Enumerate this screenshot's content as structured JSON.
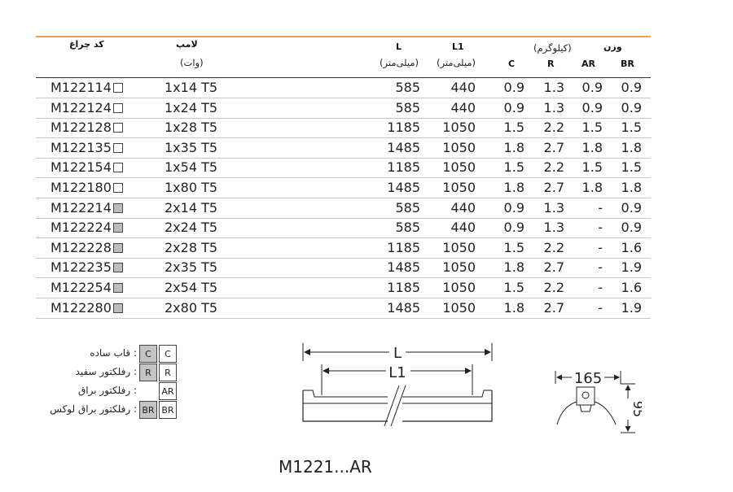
{
  "table": {
    "headers": {
      "code": "کد چراغ",
      "lamp": "لامپ",
      "lamp_unit": "(وات)",
      "L": "L",
      "L_unit": "(میلی‌متر)",
      "L1": "L1",
      "L1_unit": "(میلی‌متر)",
      "weight": "وزن",
      "weight_unit": "(کیلوگرم)",
      "C": "C",
      "R": "R",
      "AR": "AR",
      "BR": "BR"
    },
    "rows": [
      {
        "code": "M122114",
        "box": "white",
        "lamp": "1x14 T5",
        "L": "585",
        "L1": "440",
        "C": "0.9",
        "R": "1.3",
        "AR": "0.9",
        "BR": "0.9"
      },
      {
        "code": "M122124",
        "box": "white",
        "lamp": "1x24 T5",
        "L": "585",
        "L1": "440",
        "C": "0.9",
        "R": "1.3",
        "AR": "0.9",
        "BR": "0.9"
      },
      {
        "code": "M122128",
        "box": "white",
        "lamp": "1x28 T5",
        "L": "1185",
        "L1": "1050",
        "C": "1.5",
        "R": "2.2",
        "AR": "1.5",
        "BR": "1.5"
      },
      {
        "code": "M122135",
        "box": "white",
        "lamp": "1x35 T5",
        "L": "1485",
        "L1": "1050",
        "C": "1.8",
        "R": "2.7",
        "AR": "1.8",
        "BR": "1.8"
      },
      {
        "code": "M122154",
        "box": "white",
        "lamp": "1x54 T5",
        "L": "1185",
        "L1": "1050",
        "C": "1.5",
        "R": "2.2",
        "AR": "1.5",
        "BR": "1.5"
      },
      {
        "code": "M122180",
        "box": "white",
        "lamp": "1x80 T5",
        "L": "1485",
        "L1": "1050",
        "C": "1.8",
        "R": "2.7",
        "AR": "1.8",
        "BR": "1.8"
      },
      {
        "code": "M122214",
        "box": "grey",
        "lamp": "2x14 T5",
        "L": "585",
        "L1": "440",
        "C": "0.9",
        "R": "1.3",
        "AR": "-",
        "BR": "0.9"
      },
      {
        "code": "M122224",
        "box": "grey",
        "lamp": "2x24 T5",
        "L": "585",
        "L1": "440",
        "C": "0.9",
        "R": "1.3",
        "AR": "-",
        "BR": "0.9"
      },
      {
        "code": "M122228",
        "box": "grey",
        "lamp": "2x28 T5",
        "L": "1185",
        "L1": "1050",
        "C": "1.5",
        "R": "2.2",
        "AR": "-",
        "BR": "1.6"
      },
      {
        "code": "M122235",
        "box": "grey",
        "lamp": "2x35 T5",
        "L": "1485",
        "L1": "1050",
        "C": "1.8",
        "R": "2.7",
        "AR": "-",
        "BR": "1.9"
      },
      {
        "code": "M122254",
        "box": "grey",
        "lamp": "2x54 T5",
        "L": "1185",
        "L1": "1050",
        "C": "1.5",
        "R": "2.2",
        "AR": "-",
        "BR": "1.6"
      },
      {
        "code": "M122280",
        "box": "grey",
        "lamp": "2x80 T5",
        "L": "1485",
        "L1": "1050",
        "C": "1.8",
        "R": "2.7",
        "AR": "-",
        "BR": "1.9"
      }
    ]
  },
  "legend": [
    {
      "label": "قاب ساده :",
      "grey": "C",
      "white": "C"
    },
    {
      "label": "رفلکتور سفید :",
      "grey": "R",
      "white": "R"
    },
    {
      "label": "رفلکتور براق :",
      "grey": "",
      "white": "AR"
    },
    {
      "label": "رفلکتور براق لوکس :",
      "grey": "BR",
      "white": "BR"
    }
  ],
  "drawing": {
    "dim_L": "L",
    "dim_L1": "L1",
    "dim_width": "165",
    "dim_height": "95"
  },
  "model": "M1221...AR",
  "colors": {
    "accent_rule": "#f0a040",
    "grey_box": "#bdbdbd"
  }
}
